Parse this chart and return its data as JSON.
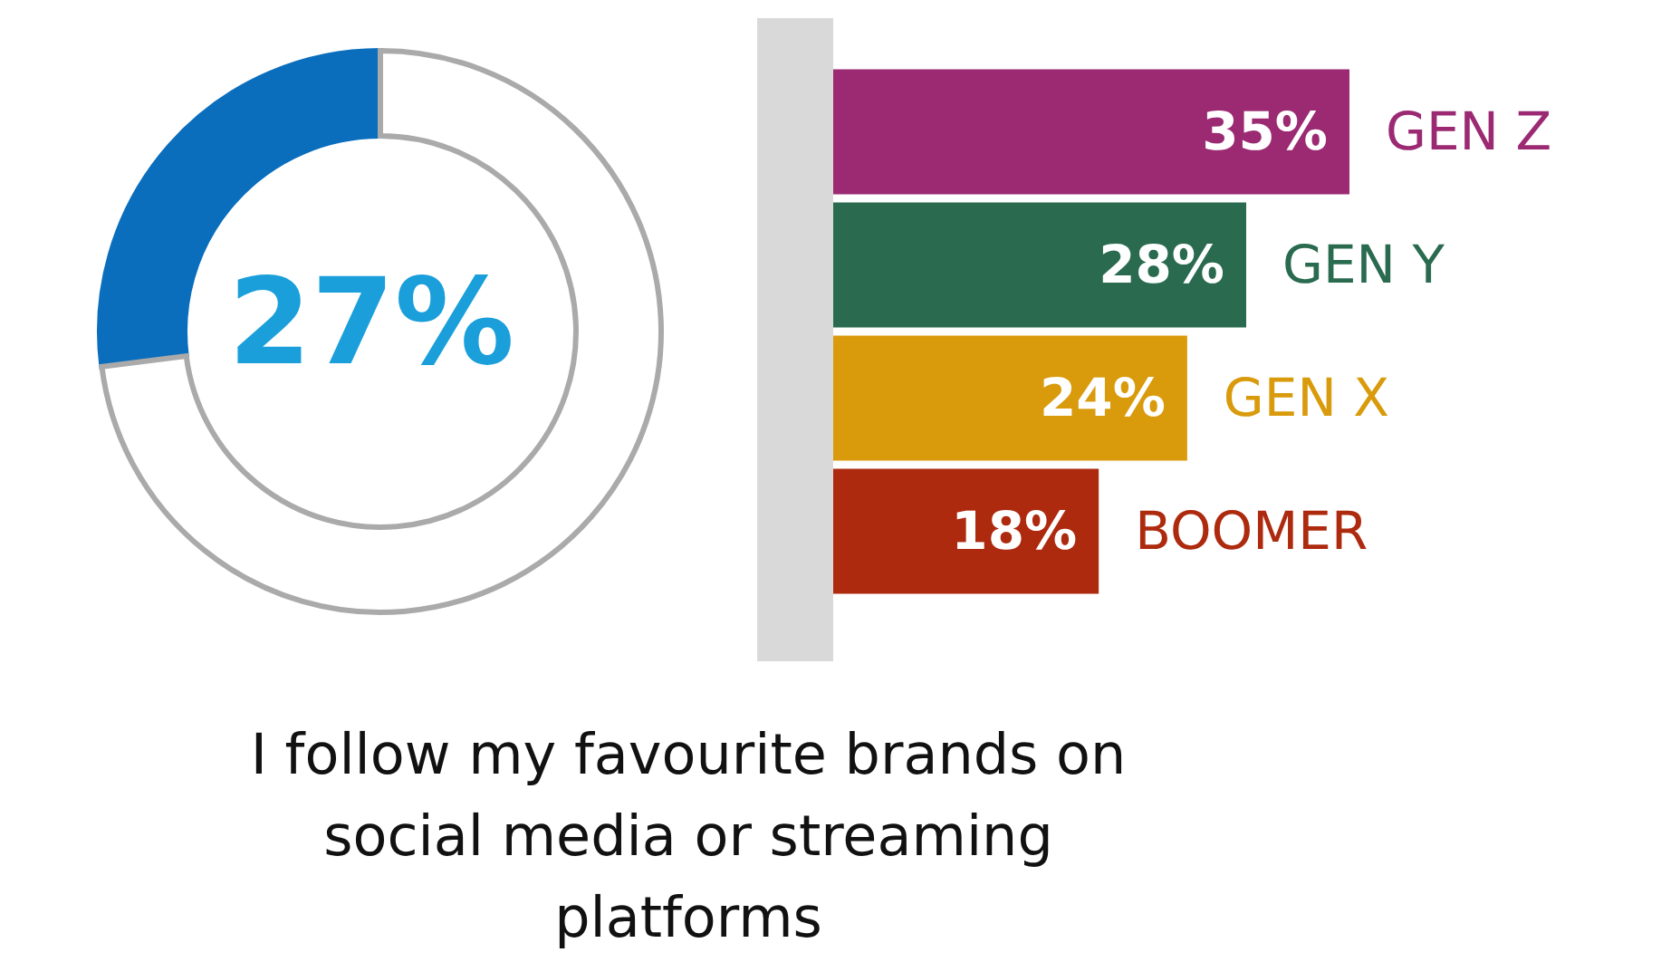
{
  "chart_data": [
    {
      "type": "donut",
      "categories": [
        null,
        null
      ],
      "values": [
        27,
        73
      ],
      "colors": [
        "#0a6ebd",
        "#ffffff"
      ],
      "value_labels": [
        "27%",
        null
      ],
      "annotations": [
        "I follow my favourite brands on social media or streaming platforms"
      ]
    },
    {
      "type": "bar",
      "orientation": "horizontal",
      "categories": [
        "GEN Z",
        "GEN Y",
        "GEN X",
        "BOOMER"
      ],
      "values": [
        35,
        28,
        24,
        18
      ],
      "colors": [
        "#9b2a72",
        "#2a6b50",
        "#d99a0b",
        "#ad2a0e"
      ],
      "value_labels": [
        "35%",
        "28%",
        "24%",
        "18%"
      ]
    }
  ]
}
